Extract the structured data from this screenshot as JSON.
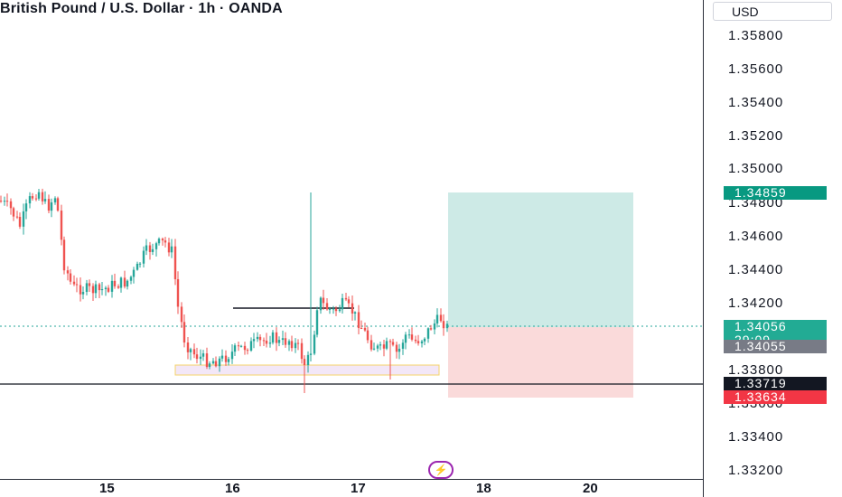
{
  "header": {
    "title": "British Pound / U.S. Dollar · 1h · OANDA",
    "currency": "USD"
  },
  "price_axis": {
    "ticks": [
      "1.35800",
      "1.35600",
      "1.35400",
      "1.35200",
      "1.35000",
      "1.34800",
      "1.34600",
      "1.34400",
      "1.34200",
      "1.33800",
      "1.33600",
      "1.33400",
      "1.33200"
    ]
  },
  "badges": {
    "take_profit": "1.34859",
    "last_price": "1.34056",
    "countdown": "29:09",
    "bid": "1.34055",
    "crosshair": "1.33719",
    "stop_loss": "1.33634"
  },
  "time_axis": {
    "labels": [
      "15",
      "16",
      "17",
      "18",
      "20"
    ]
  },
  "colors": {
    "up": "#26a69a",
    "down": "#ef5350",
    "target_zone": "#cdeae6",
    "stop_zone": "#fadada"
  },
  "logo_icon": "lightning-icon",
  "chart_data": {
    "type": "candlestick",
    "symbol": "GBPUSD",
    "interval": "1h",
    "y_range": [
      1.3315,
      1.3598
    ],
    "position": {
      "type": "long",
      "entry": 1.34056,
      "take_profit": 1.34859,
      "stop_loss": 1.33634
    },
    "support_zone": [
      1.3375,
      1.3382
    ],
    "resistance_line": 1.3416,
    "horizontal_line": 1.33719,
    "x_labels": [
      "15",
      "16",
      "17",
      "18",
      "20"
    ]
  }
}
